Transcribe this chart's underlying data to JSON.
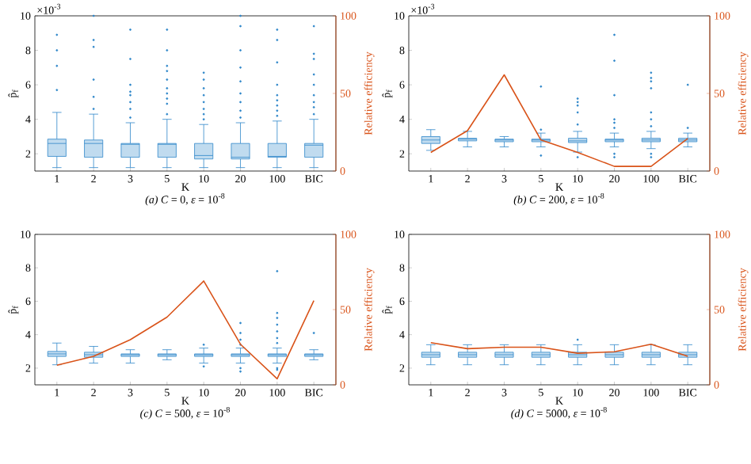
{
  "chart_data": [
    {
      "type": "box",
      "subtitle": "*(a) C* = 0, *ε* = 10$^{-8}$",
      "xlabel": "K",
      "ylabel": "p̂$_{f}$",
      "y2label": "Relative efficiency",
      "annotations": [
        "×10$^{-3}$"
      ],
      "categories": [
        "1",
        "2",
        "3",
        "5",
        "10",
        "20",
        "100",
        "BIC"
      ],
      "ylim": [
        1,
        10
      ],
      "yticks": [
        2,
        4,
        6,
        8,
        10
      ],
      "y2lim": [
        0,
        100
      ],
      "y2ticks": [
        0,
        50,
        100
      ],
      "series": [
        {
          "color": "#2e86c9",
          "boxes": [
            {
              "low": 1.2,
              "q1": 1.85,
              "median": 2.6,
              "q3": 2.85,
              "high": 4.4,
              "outliers": [
                5.7,
                7.1,
                8.0,
                8.9
              ]
            },
            {
              "low": 1.2,
              "q1": 1.8,
              "median": 2.6,
              "q3": 2.8,
              "high": 4.3,
              "outliers": [
                4.6,
                5.3,
                6.3,
                8.2,
                8.6,
                10
              ]
            },
            {
              "low": 1.2,
              "q1": 1.8,
              "median": 2.55,
              "q3": 2.6,
              "high": 3.8,
              "outliers": [
                4.1,
                4.6,
                5.0,
                5.4,
                5.6,
                6.0,
                7.5,
                9.2
              ]
            },
            {
              "low": 1.2,
              "q1": 1.8,
              "median": 2.55,
              "q3": 2.6,
              "high": 4.0,
              "outliers": [
                4.3,
                4.9,
                5.2,
                5.5,
                5.8,
                6.3,
                6.8,
                7.1,
                8.0,
                9.2
              ]
            },
            {
              "low": 1.2,
              "q1": 1.7,
              "median": 1.9,
              "q3": 2.6,
              "high": 3.7,
              "outliers": [
                4.0,
                4.3,
                4.6,
                5.0,
                5.4,
                5.8,
                6.3,
                6.7
              ]
            },
            {
              "low": 1.2,
              "q1": 1.7,
              "median": 1.8,
              "q3": 2.6,
              "high": 3.8,
              "outliers": [
                4.1,
                4.5,
                5.0,
                5.5,
                6.2,
                7.0,
                8.0,
                9.4,
                10
              ]
            },
            {
              "low": 1.2,
              "q1": 1.8,
              "median": 1.85,
              "q3": 2.6,
              "high": 3.9,
              "outliers": [
                4.2,
                4.5,
                4.8,
                5.1,
                5.4,
                6.0,
                7.3,
                8.6,
                9.2
              ]
            },
            {
              "low": 1.2,
              "q1": 1.8,
              "median": 2.5,
              "q3": 2.6,
              "high": 4.0,
              "outliers": [
                4.3,
                4.7,
                5.0,
                5.4,
                6.0,
                6.6,
                7.5,
                7.8,
                9.4
              ]
            }
          ]
        }
      ]
    },
    {
      "type": "box",
      "subtitle": "*(b) C* = 200, *ε* = 10$^{-8}$",
      "xlabel": "K",
      "ylabel": "p̂$_{f}$",
      "y2label": "Relative efficiency",
      "annotations": [
        "×10$^{-3}$"
      ],
      "categories": [
        "1",
        "2",
        "3",
        "5",
        "10",
        "20",
        "100",
        "BIC"
      ],
      "ylim": [
        1,
        10
      ],
      "yticks": [
        2,
        4,
        6,
        8,
        10
      ],
      "y2lim": [
        0,
        100
      ],
      "y2ticks": [
        0,
        50,
        100
      ],
      "series": [
        {
          "color": "#2e86c9",
          "boxes": [
            {
              "low": 2.2,
              "q1": 2.6,
              "median": 2.8,
              "q3": 3.0,
              "high": 3.4
            },
            {
              "low": 2.4,
              "q1": 2.75,
              "median": 2.85,
              "q3": 2.9,
              "high": 3.3
            },
            {
              "low": 2.4,
              "q1": 2.7,
              "median": 2.8,
              "q3": 2.85,
              "high": 3.0
            },
            {
              "low": 2.4,
              "q1": 2.7,
              "median": 2.8,
              "q3": 2.85,
              "high": 3.2,
              "outliers": [
                1.9,
                3.4,
                5.9
              ]
            },
            {
              "low": 2.1,
              "q1": 2.65,
              "median": 2.75,
              "q3": 2.9,
              "high": 3.3,
              "outliers": [
                1.8,
                3.7,
                4.4,
                4.8,
                5.0,
                5.2
              ]
            },
            {
              "low": 2.4,
              "q1": 2.7,
              "median": 2.8,
              "q3": 2.85,
              "high": 3.2,
              "outliers": [
                1.8,
                2.0,
                3.5,
                3.8,
                4.0,
                5.4,
                7.4,
                8.9
              ]
            },
            {
              "low": 2.3,
              "q1": 2.7,
              "median": 2.8,
              "q3": 2.9,
              "high": 3.3,
              "outliers": [
                1.8,
                2.0,
                3.6,
                4.0,
                4.4,
                5.8,
                6.2,
                6.4,
                6.7
              ]
            },
            {
              "low": 2.4,
              "q1": 2.7,
              "median": 2.8,
              "q3": 2.9,
              "high": 3.2,
              "outliers": [
                3.5,
                6.0
              ]
            }
          ]
        },
        {
          "type": "line",
          "axis": "y2",
          "color": "#d95319",
          "values": [
            12,
            26,
            62,
            20,
            12,
            3,
            3,
            21
          ]
        }
      ]
    },
    {
      "type": "box",
      "subtitle": "*(c) C* = 500, *ε* = 10$^{-8}$",
      "xlabel": "K",
      "ylabel": "p̂$_{f}$",
      "y2label": "Relative efficiency",
      "categories": [
        "1",
        "2",
        "3",
        "5",
        "10",
        "20",
        "100",
        "BIC"
      ],
      "ylim": [
        1,
        10
      ],
      "yticks": [
        2,
        4,
        6,
        8,
        10
      ],
      "y2lim": [
        0,
        100
      ],
      "y2ticks": [
        0,
        50,
        100
      ],
      "series": [
        {
          "color": "#2e86c9",
          "boxes": [
            {
              "low": 2.2,
              "q1": 2.7,
              "median": 2.85,
              "q3": 3.0,
              "high": 3.5
            },
            {
              "low": 2.3,
              "q1": 2.65,
              "median": 2.8,
              "q3": 2.95,
              "high": 3.3
            },
            {
              "low": 2.3,
              "q1": 2.7,
              "median": 2.8,
              "q3": 2.85,
              "high": 3.1
            },
            {
              "low": 2.5,
              "q1": 2.7,
              "median": 2.8,
              "q3": 2.85,
              "high": 3.1
            },
            {
              "low": 2.3,
              "q1": 2.7,
              "median": 2.8,
              "q3": 2.85,
              "high": 3.2,
              "outliers": [
                2.1,
                3.4
              ]
            },
            {
              "low": 2.3,
              "q1": 2.7,
              "median": 2.8,
              "q3": 2.85,
              "high": 3.2,
              "outliers": [
                1.8,
                2.0,
                3.4,
                3.7,
                4.1,
                4.7
              ]
            },
            {
              "low": 2.3,
              "q1": 2.7,
              "median": 2.8,
              "q3": 2.85,
              "high": 3.2,
              "outliers": [
                1.9,
                2.0,
                3.5,
                3.8,
                4.2,
                4.6,
                5.0,
                5.3,
                7.8
              ]
            },
            {
              "low": 2.5,
              "q1": 2.7,
              "median": 2.8,
              "q3": 2.85,
              "high": 3.1,
              "outliers": [
                4.1
              ]
            }
          ]
        },
        {
          "type": "line",
          "axis": "y2",
          "color": "#d95319",
          "values": [
            13,
            19,
            30,
            45,
            69,
            27,
            4,
            56
          ]
        }
      ]
    },
    {
      "type": "box",
      "subtitle": "*(d) C* = 5000, *ε* = 10$^{-8}$",
      "xlabel": "K",
      "ylabel": "p̂$_{f}$",
      "y2label": "Relative efficiency",
      "categories": [
        "1",
        "2",
        "3",
        "5",
        "10",
        "20",
        "100",
        "BIC"
      ],
      "ylim": [
        1,
        10
      ],
      "yticks": [
        2,
        4,
        6,
        8,
        10
      ],
      "y2lim": [
        0,
        100
      ],
      "y2ticks": [
        0,
        50,
        100
      ],
      "series": [
        {
          "color": "#2e86c9",
          "boxes": [
            {
              "low": 2.2,
              "q1": 2.65,
              "median": 2.8,
              "q3": 2.95,
              "high": 3.4
            },
            {
              "low": 2.2,
              "q1": 2.65,
              "median": 2.8,
              "q3": 2.95,
              "high": 3.4
            },
            {
              "low": 2.2,
              "q1": 2.65,
              "median": 2.8,
              "q3": 2.95,
              "high": 3.4
            },
            {
              "low": 2.2,
              "q1": 2.65,
              "median": 2.8,
              "q3": 2.95,
              "high": 3.4
            },
            {
              "low": 2.2,
              "q1": 2.65,
              "median": 2.8,
              "q3": 2.95,
              "high": 3.4,
              "outliers": [
                3.7
              ]
            },
            {
              "low": 2.2,
              "q1": 2.65,
              "median": 2.8,
              "q3": 2.95,
              "high": 3.4
            },
            {
              "low": 2.2,
              "q1": 2.65,
              "median": 2.8,
              "q3": 2.95,
              "high": 3.4
            },
            {
              "low": 2.2,
              "q1": 2.65,
              "median": 2.8,
              "q3": 2.95,
              "high": 3.4
            }
          ]
        },
        {
          "type": "line",
          "axis": "y2",
          "color": "#d95319",
          "values": [
            28,
            24,
            25,
            25,
            21,
            22,
            27,
            19
          ]
        }
      ]
    }
  ]
}
